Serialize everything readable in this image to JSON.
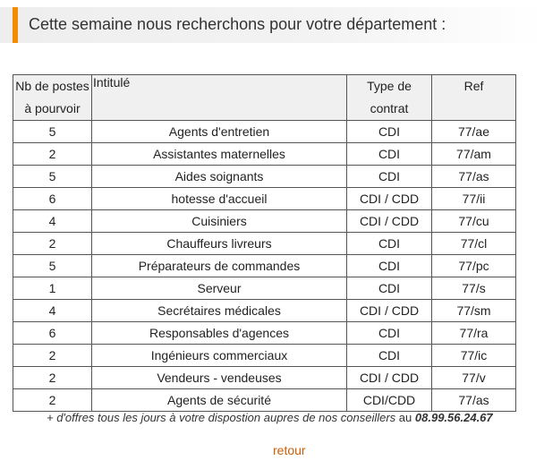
{
  "header": {
    "title": "Cette semaine nous recherchons pour votre département :",
    "accent_color": "#f28c00"
  },
  "table": {
    "headers": {
      "nb": "Nb de postes à pourvoir",
      "title": "Intitulé",
      "type": "Type de contrat",
      "ref": "Ref"
    },
    "rows": [
      {
        "nb": "5",
        "title": "Agents d'entretien",
        "type": "CDI",
        "ref": "77/ae"
      },
      {
        "nb": "2",
        "title": "Assistantes maternelles",
        "type": "CDI",
        "ref": "77/am"
      },
      {
        "nb": "5",
        "title": "Aides soignants",
        "type": "CDI",
        "ref": "77/as"
      },
      {
        "nb": "6",
        "title": "hotesse d'accueil",
        "type": "CDI / CDD",
        "ref": "77/ii"
      },
      {
        "nb": "4",
        "title": "Cuisiniers",
        "type": "CDI / CDD",
        "ref": "77/cu"
      },
      {
        "nb": "2",
        "title": "Chauffeurs livreurs",
        "type": "CDI",
        "ref": "77/cl"
      },
      {
        "nb": "5",
        "title": "Préparateurs de commandes",
        "type": "CDI",
        "ref": "77/pc"
      },
      {
        "nb": "1",
        "title": "Serveur",
        "type": "CDI",
        "ref": "77/s"
      },
      {
        "nb": "4",
        "title": "Secrétaires médicales",
        "type": "CDI / CDD",
        "ref": "77/sm"
      },
      {
        "nb": "6",
        "title": "Responsables d'agences",
        "type": "CDI",
        "ref": "77/ra"
      },
      {
        "nb": "2",
        "title": "Ingénieurs commerciaux",
        "type": "CDI",
        "ref": "77/ic"
      },
      {
        "nb": "2",
        "title": "Vendeurs - vendeuses",
        "type": "CDI / CDD",
        "ref": "77/v"
      },
      {
        "nb": "2",
        "title": "Agents de sécurité",
        "type": "CDI/CDD",
        "ref": "77/as"
      }
    ]
  },
  "footnote": {
    "text": "+ d'offres tous les jours à votre dispostion aupres de nos conseillers",
    "connector": "au",
    "phone": "08.99.56.24.67"
  },
  "retour_label": "retour"
}
